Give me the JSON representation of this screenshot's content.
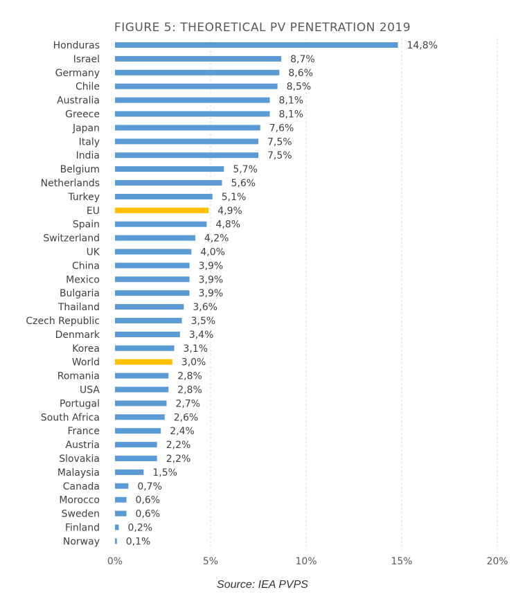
{
  "chart_data": {
    "type": "bar",
    "orientation": "horizontal",
    "title": "FIGURE 5: THEORETICAL PV PENETRATION 2019",
    "categories": [
      "Honduras",
      "Israel",
      "Germany",
      "Chile",
      "Australia",
      "Greece",
      "Japan",
      "Italy",
      "India",
      "Belgium",
      "Netherlands",
      "Turkey",
      "EU",
      "Spain",
      "Switzerland",
      "UK",
      "China",
      "Mexico",
      "Bulgaria",
      "Thailand",
      "Czech Republic",
      "Denmark",
      "Korea",
      "World",
      "Romania",
      "USA",
      "Portugal",
      "South Africa",
      "France",
      "Austria",
      "Slovakia",
      "Malaysia",
      "Canada",
      "Morocco",
      "Sweden",
      "Finland",
      "Norway"
    ],
    "values": [
      14.8,
      8.7,
      8.6,
      8.5,
      8.1,
      8.1,
      7.6,
      7.5,
      7.5,
      5.7,
      5.6,
      5.1,
      4.9,
      4.8,
      4.2,
      4.0,
      3.9,
      3.9,
      3.9,
      3.6,
      3.5,
      3.4,
      3.1,
      3.0,
      2.8,
      2.8,
      2.7,
      2.6,
      2.4,
      2.2,
      2.2,
      1.5,
      0.7,
      0.6,
      0.6,
      0.2,
      0.1
    ],
    "value_labels": [
      "14,8%",
      "8,7%",
      "8,6%",
      "8,5%",
      "8,1%",
      "8,1%",
      "7,6%",
      "7,5%",
      "7,5%",
      "5,7%",
      "5,6%",
      "5,1%",
      "4,9%",
      "4,8%",
      "4,2%",
      "4,0%",
      "3,9%",
      "3,9%",
      "3,9%",
      "3,6%",
      "3,5%",
      "3,4%",
      "3,1%",
      "3,0%",
      "2,8%",
      "2,8%",
      "2,7%",
      "2,6%",
      "2,4%",
      "2,2%",
      "2,2%",
      "1,5%",
      "0,7%",
      "0,6%",
      "0,6%",
      "0,2%",
      "0,1%"
    ],
    "highlighted": [
      "EU",
      "World"
    ],
    "xlim": [
      0,
      20
    ],
    "xticks": [
      0,
      5,
      10,
      15,
      20
    ],
    "xtick_labels": [
      "0%",
      "5%",
      "10%",
      "15%",
      "20%"
    ],
    "grid": "vertical dashed",
    "colors": {
      "bar": "#5b9bd5",
      "highlight": "#ffc000"
    },
    "source": "Source: IEA PVPS"
  }
}
